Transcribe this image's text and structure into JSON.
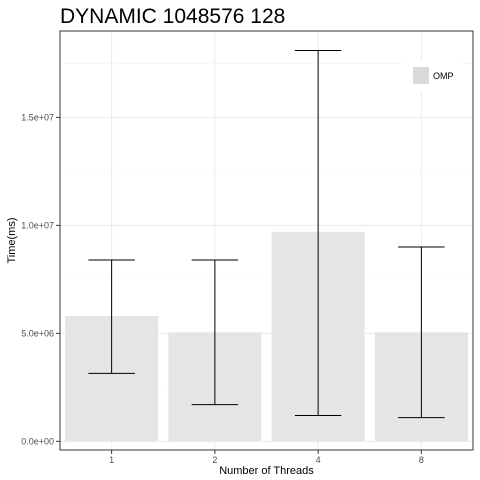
{
  "chart_data": {
    "type": "bar",
    "title": "DYNAMIC 1048576 128",
    "xlabel": "Number of Threads",
    "ylabel": "Time(ms)",
    "categories": [
      "1",
      "2",
      "4",
      "8"
    ],
    "series": [
      {
        "name": "OMP",
        "values": [
          5800000,
          5050000,
          9700000,
          5050000
        ],
        "error_low": [
          3150000,
          1700000,
          1200000,
          1100000
        ],
        "error_high": [
          8400000,
          8400000,
          18100000,
          9000000
        ]
      }
    ],
    "ylim": [
      -400000,
      19000000
    ],
    "y_ticks": [
      0,
      5000000,
      10000000,
      15000000
    ],
    "y_tick_labels": [
      "0.0e+00",
      "5.0e+06",
      "1.0e+07",
      "1.5e+07"
    ],
    "grid": true,
    "legend_position": "top-right",
    "colors": {
      "bar": "#e5e5e5",
      "legend_key": "#d9d9d9",
      "grid_major": "#ebebeb",
      "grid_minor": "#f5f5f5",
      "panel_border": "#333333",
      "error_bar": "#000000",
      "text": "#000000",
      "tick_text": "#4d4d4d"
    }
  }
}
